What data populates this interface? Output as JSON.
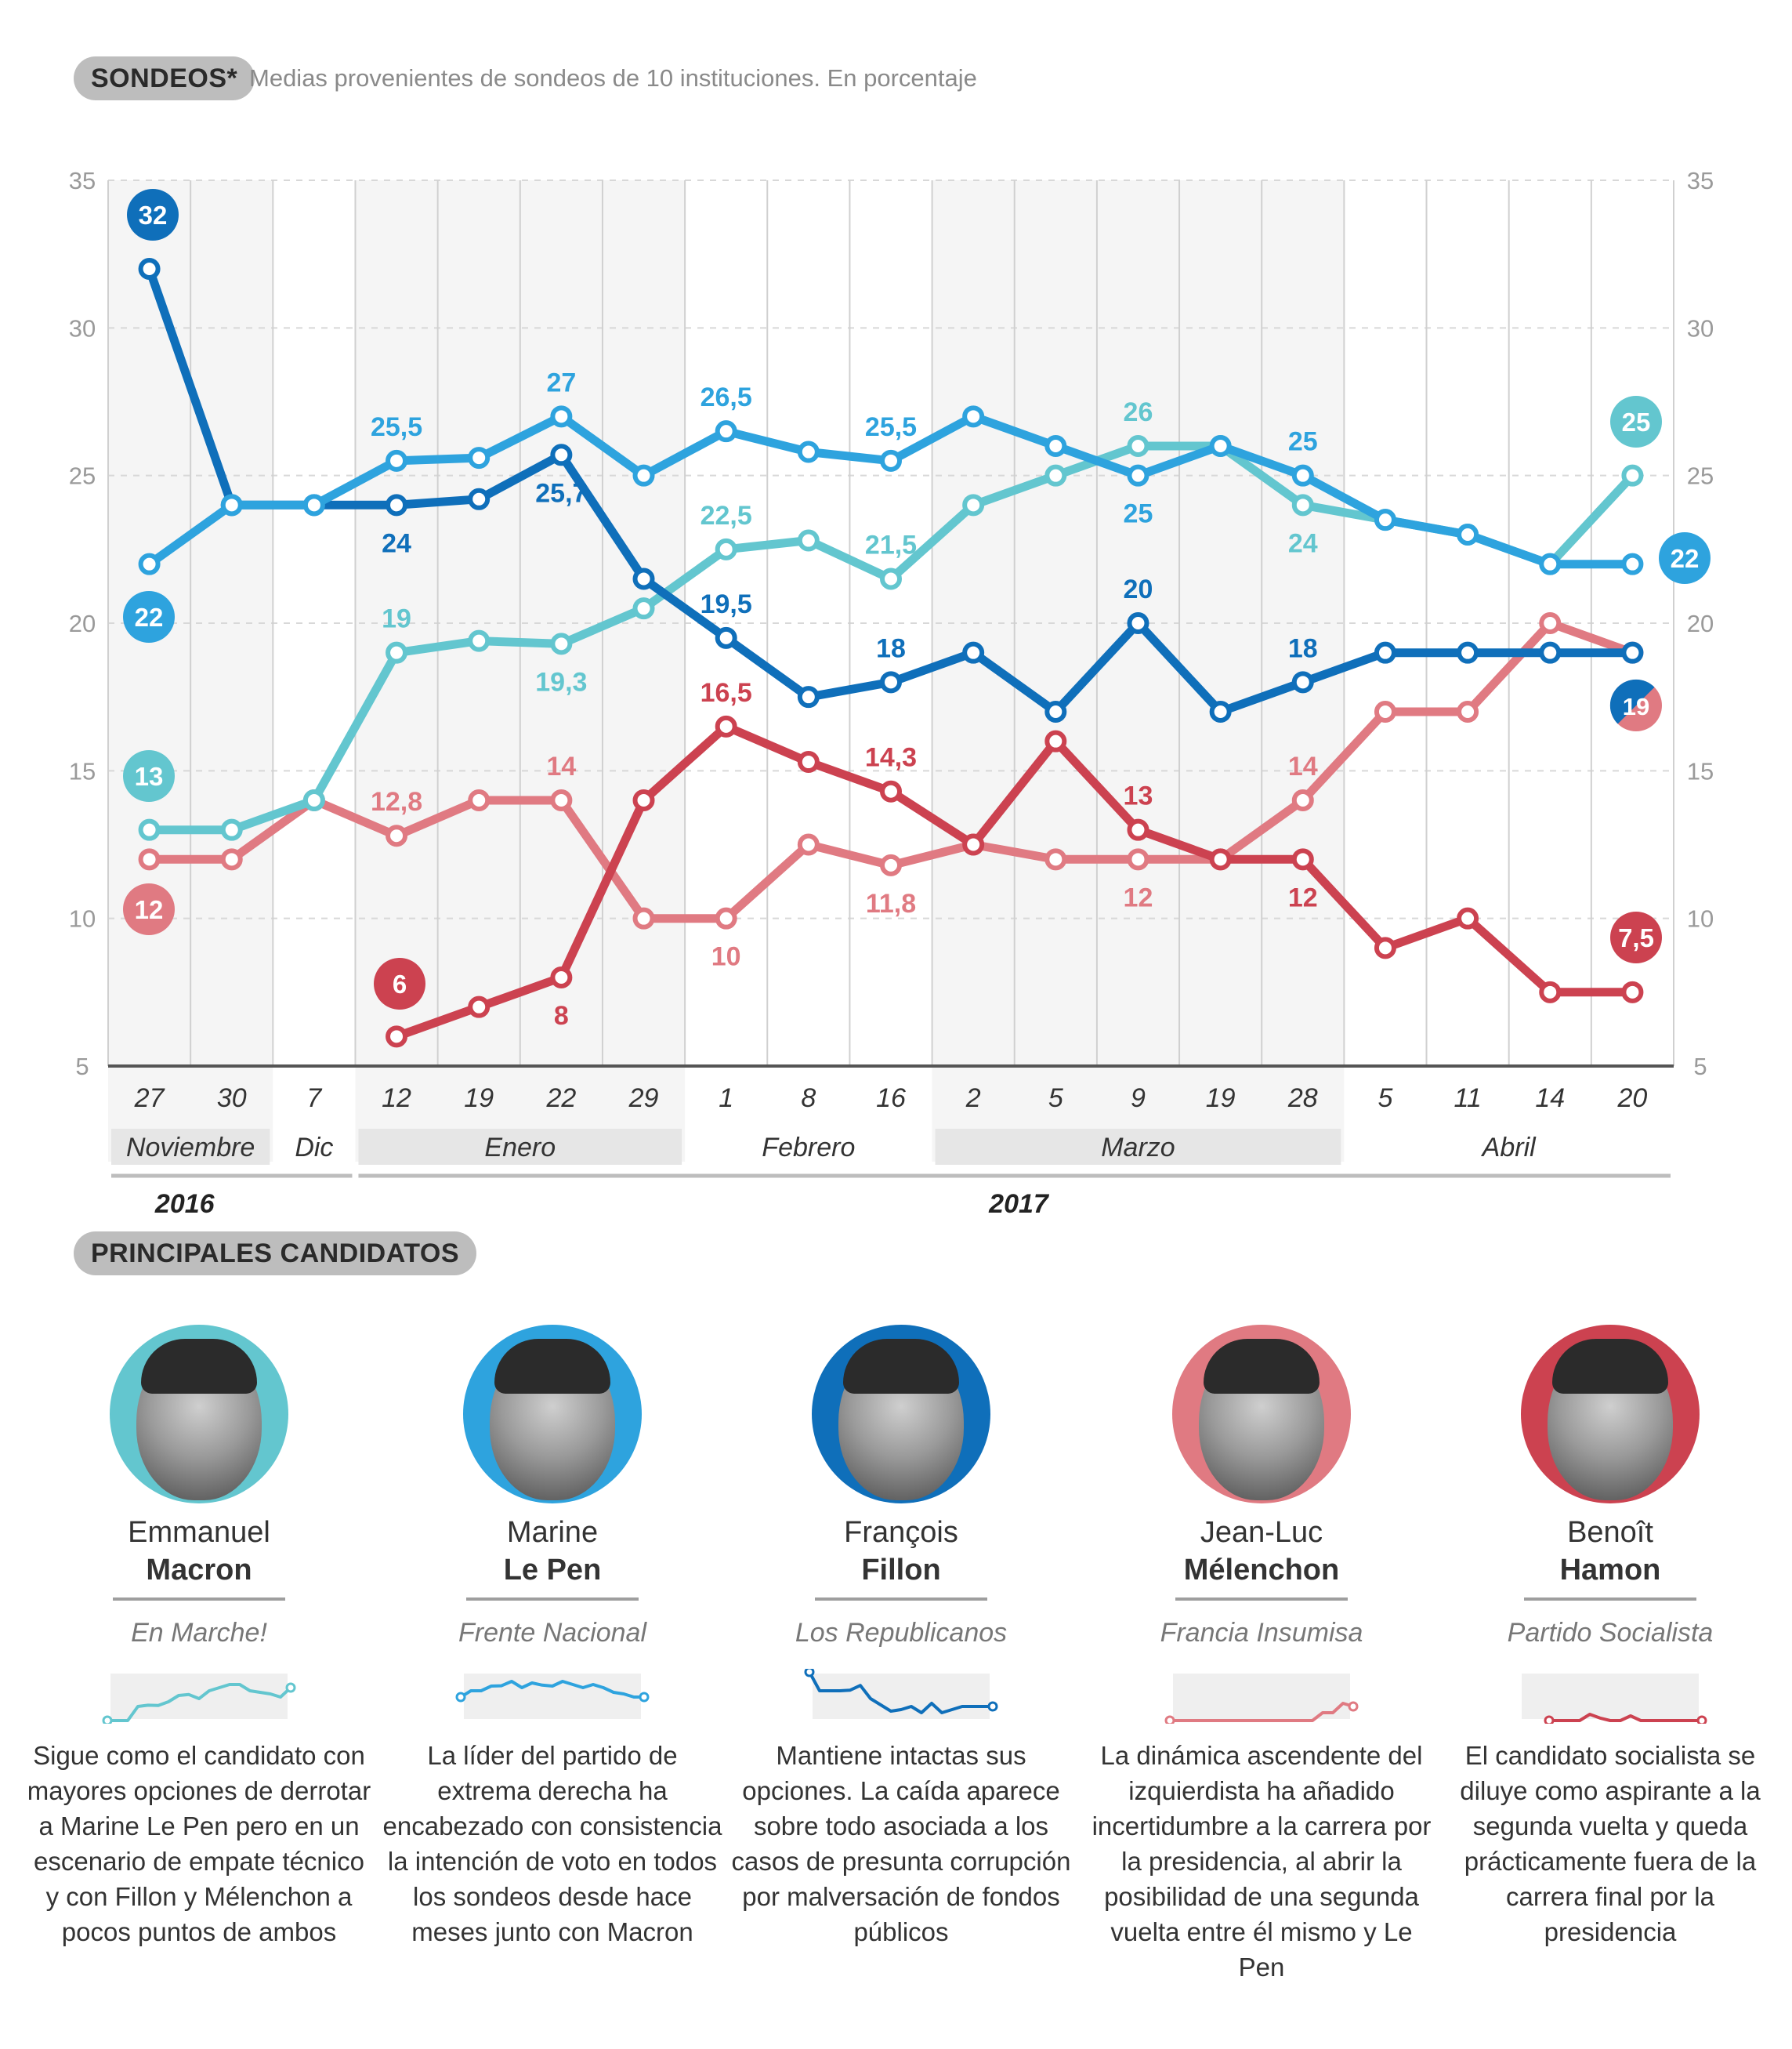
{
  "header": {
    "badge": "SONDEOS*",
    "subtitle": "Medias provenientes de sondeos de 10 instituciones. En porcentaje"
  },
  "candidates_badge": "PRINCIPALES CANDIDATOS",
  "colors": {
    "macron": "#63c6cf",
    "lepen": "#2ea3de",
    "fillon": "#0f6fba",
    "melenchon": "#e07a82",
    "hamon": "#cc4250"
  },
  "chart_data": {
    "type": "line",
    "ylim": [
      5,
      35
    ],
    "yticks": [
      "5",
      "10",
      "15",
      "20",
      "25",
      "30",
      "35"
    ],
    "x": [
      "27",
      "30",
      "7",
      "12",
      "19",
      "22",
      "29",
      "1",
      "8",
      "16",
      "2",
      "5",
      "9",
      "19",
      "28",
      "5",
      "11",
      "14",
      "20"
    ],
    "months": [
      {
        "label": "Noviembre",
        "from": 0,
        "to": 1
      },
      {
        "label": "Dic",
        "from": 2,
        "to": 2
      },
      {
        "label": "Enero",
        "from": 3,
        "to": 6
      },
      {
        "label": "Febrero",
        "from": 7,
        "to": 9
      },
      {
        "label": "Marzo",
        "from": 10,
        "to": 14
      },
      {
        "label": "Abril",
        "from": 15,
        "to": 18
      }
    ],
    "years": [
      {
        "label": "2016",
        "from": 0,
        "to": 2
      },
      {
        "label": "2017",
        "from": 3,
        "to": 18
      }
    ],
    "series": [
      {
        "key": "melenchon",
        "color": "#e07a82",
        "values": [
          12,
          12,
          14,
          12.8,
          14,
          14,
          10,
          10,
          12.5,
          11.8,
          12.5,
          12,
          12,
          12,
          14,
          17,
          17,
          20,
          19
        ],
        "labels": [
          {
            "i": 3,
            "text": "12,8",
            "pos": "above"
          },
          {
            "i": 5,
            "text": "14",
            "pos": "above"
          },
          {
            "i": 7,
            "text": "10",
            "pos": "below"
          },
          {
            "i": 9,
            "text": "11,8",
            "pos": "below"
          },
          {
            "i": 12,
            "text": "12",
            "pos": "below"
          },
          {
            "i": 14,
            "text": "14",
            "pos": "above"
          }
        ],
        "start_bubble": "12",
        "end_bubble": "19"
      },
      {
        "key": "hamon",
        "color": "#cc4250",
        "values": [
          null,
          null,
          null,
          6,
          7,
          8,
          14,
          16.5,
          15.3,
          14.3,
          12.5,
          16,
          13,
          12,
          12,
          9,
          10,
          7.5,
          7.5
        ],
        "labels": [
          {
            "i": 5,
            "text": "8",
            "pos": "below"
          },
          {
            "i": 7,
            "text": "16,5",
            "pos": "above"
          },
          {
            "i": 9,
            "text": "14,3",
            "pos": "above"
          },
          {
            "i": 12,
            "text": "13",
            "pos": "above"
          },
          {
            "i": 14,
            "text": "12",
            "pos": "below"
          }
        ],
        "start_bubble": "6",
        "end_bubble": "7,5"
      },
      {
        "key": "macron",
        "color": "#63c6cf",
        "values": [
          13,
          13,
          14,
          19,
          19.4,
          19.3,
          20.5,
          22.5,
          22.8,
          21.5,
          24,
          25,
          26,
          26,
          24,
          23.5,
          23,
          22,
          25
        ],
        "labels": [
          {
            "i": 3,
            "text": "19",
            "pos": "above"
          },
          {
            "i": 5,
            "text": "19,3",
            "pos": "below"
          },
          {
            "i": 7,
            "text": "22,5",
            "pos": "above"
          },
          {
            "i": 9,
            "text": "21,5",
            "pos": "above"
          },
          {
            "i": 12,
            "text": "26",
            "pos": "above"
          },
          {
            "i": 14,
            "text": "24",
            "pos": "below"
          }
        ],
        "start_bubble": "13",
        "end_bubble": "25"
      },
      {
        "key": "fillon",
        "color": "#0f6fba",
        "values": [
          32,
          24,
          24,
          24,
          24.2,
          25.7,
          21.5,
          19.5,
          17.5,
          18,
          19,
          17,
          20,
          17,
          18,
          19,
          19,
          19,
          19
        ],
        "labels": [
          {
            "i": 3,
            "text": "24",
            "pos": "below"
          },
          {
            "i": 5,
            "text": "25,7",
            "pos": "below"
          },
          {
            "i": 7,
            "text": "19,5",
            "pos": "above"
          },
          {
            "i": 9,
            "text": "18",
            "pos": "above"
          },
          {
            "i": 12,
            "text": "20",
            "pos": "above"
          },
          {
            "i": 14,
            "text": "18",
            "pos": "above"
          }
        ],
        "start_bubble": "32",
        "end_bubble": "19"
      },
      {
        "key": "lepen",
        "color": "#2ea3de",
        "values": [
          22,
          24,
          24,
          25.5,
          25.6,
          27,
          25,
          26.5,
          25.8,
          25.5,
          27,
          26,
          25,
          26,
          25,
          23.5,
          23,
          22,
          22
        ],
        "labels": [
          {
            "i": 3,
            "text": "25,5",
            "pos": "above"
          },
          {
            "i": 5,
            "text": "27",
            "pos": "above"
          },
          {
            "i": 7,
            "text": "26,5",
            "pos": "above"
          },
          {
            "i": 9,
            "text": "25,5",
            "pos": "above"
          },
          {
            "i": 12,
            "text": "25",
            "pos": "below"
          },
          {
            "i": 14,
            "text": "25",
            "pos": "above"
          }
        ],
        "start_bubble": "22",
        "end_bubble": "22"
      }
    ]
  },
  "candidates": [
    {
      "key": "macron",
      "first": "Emmanuel",
      "last": "Macron",
      "party": "En Marche!",
      "desc": "Sigue como el candidato con mayores opciones de derrotar a Marine Le Pen pero en un escenario de empate técnico y con Fillon y Mélenchon a pocos puntos de ambos"
    },
    {
      "key": "lepen",
      "first": "Marine",
      "last": "Le Pen",
      "party": "Frente Nacional",
      "desc": "La líder del partido de extrema derecha ha encabezado con consistencia la intención de voto en todos los sondeos desde hace meses junto con Macron"
    },
    {
      "key": "fillon",
      "first": "François",
      "last": "Fillon",
      "party": "Los Republicanos",
      "desc": "Mantiene intactas sus opciones. La caída aparece sobre todo asociada a los casos de presunta corrupción por malversación de fondos públicos"
    },
    {
      "key": "melenchon",
      "first": "Jean-Luc",
      "last": "Mélenchon",
      "party": "Francia Insumisa",
      "desc": "La dinámica ascendente del izquierdista ha añadido incertidumbre a la carrera por la presidencia, al abrir la posibilidad de una segunda vuelta entre él mismo y Le Pen"
    },
    {
      "key": "hamon",
      "first": "Benoît",
      "last": "Hamon",
      "party": "Partido Socialista",
      "desc": "El candidato socialista se diluye como aspirante a la segunda vuelta y queda prácticamente fuera de la carrera final por la presidencia"
    }
  ]
}
